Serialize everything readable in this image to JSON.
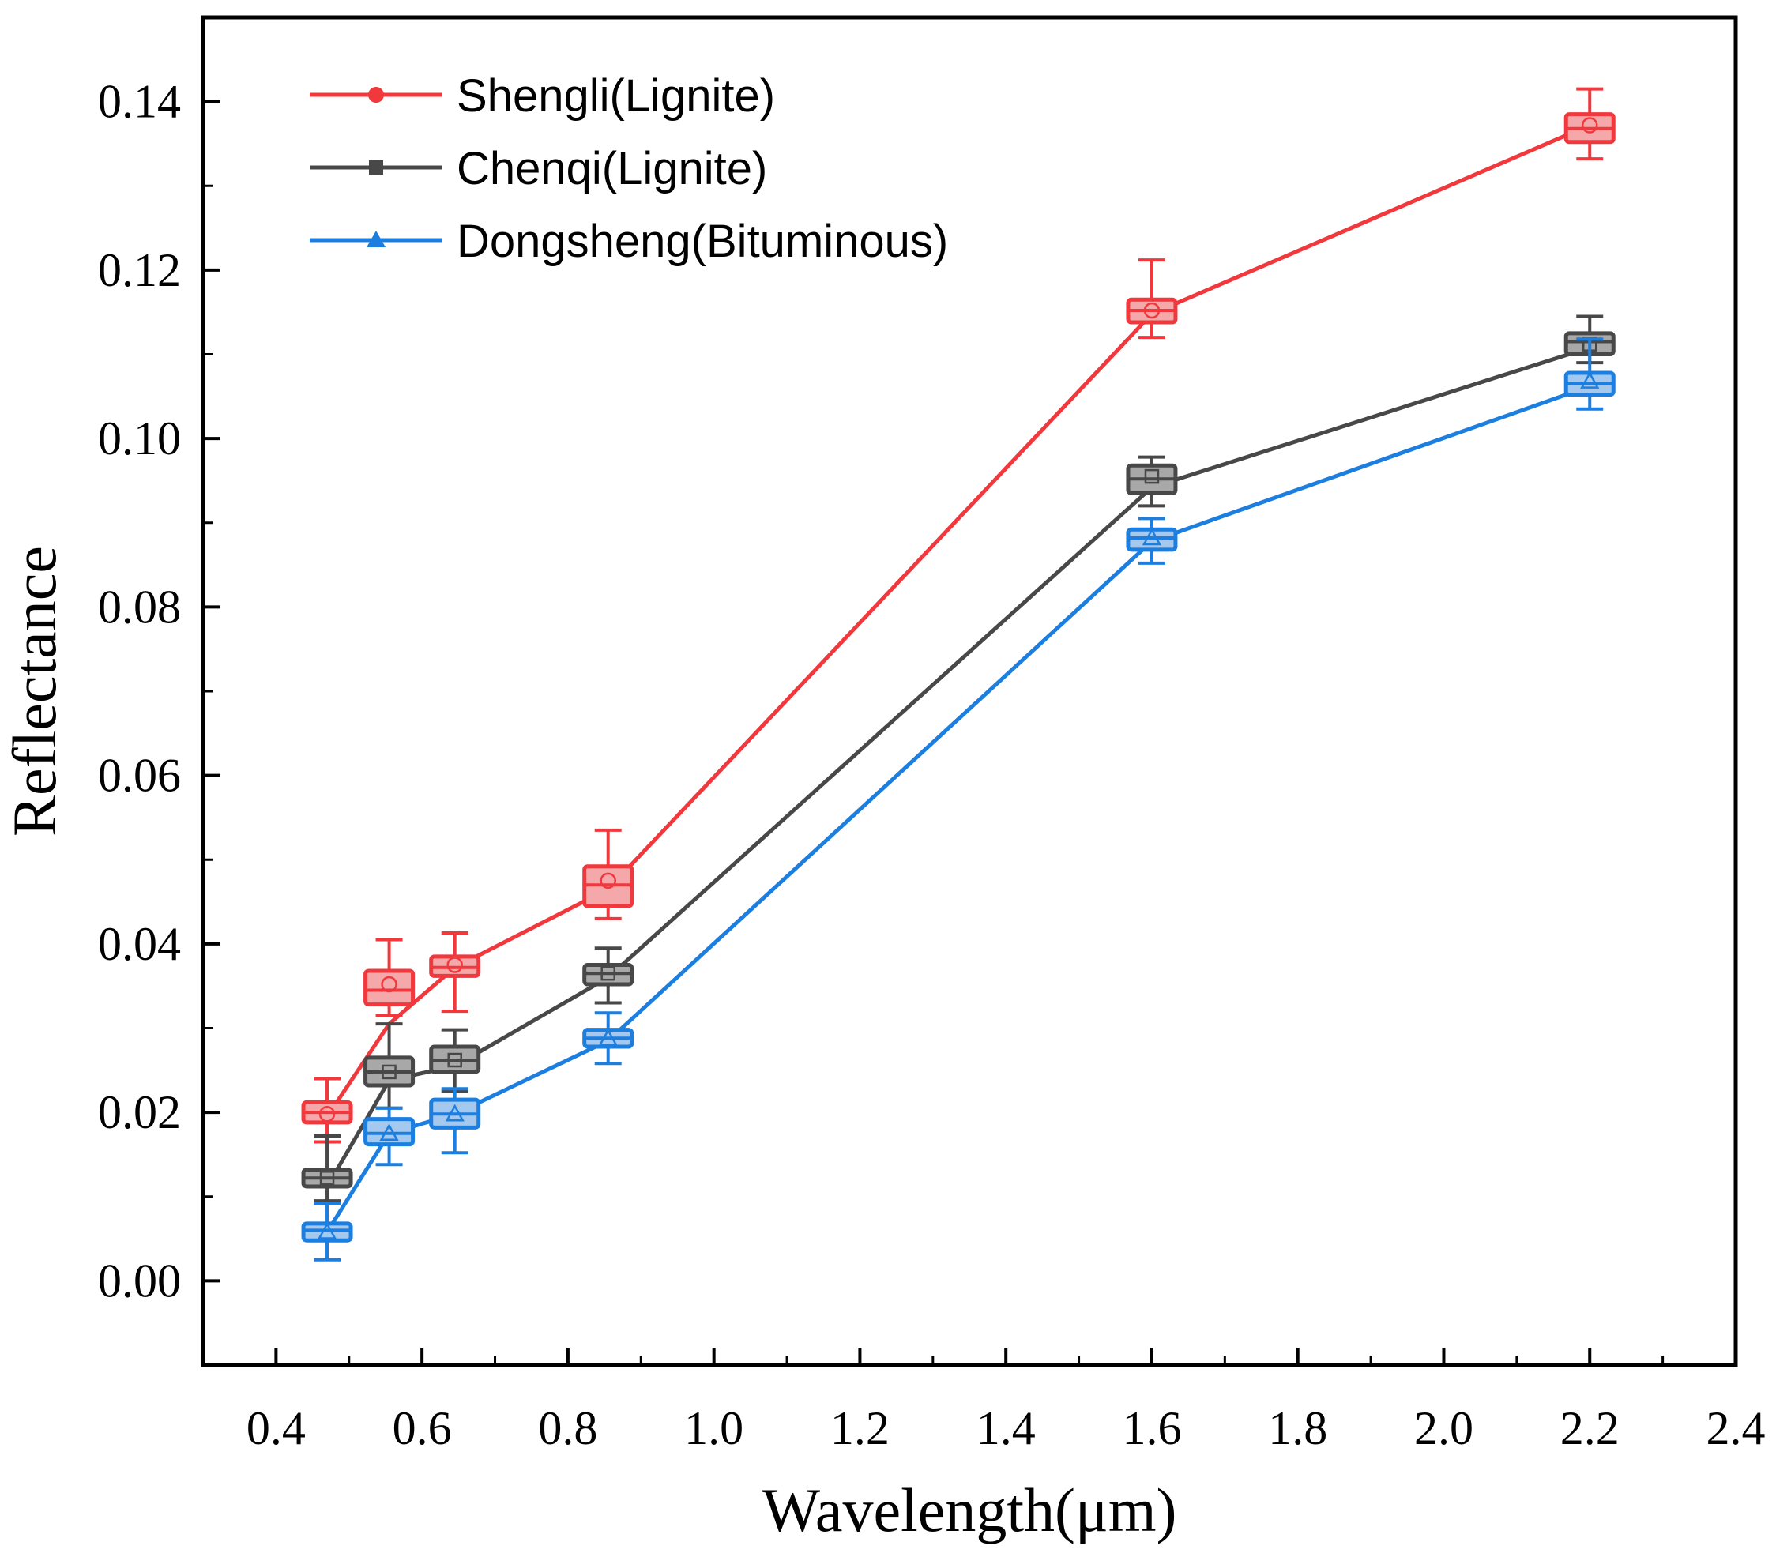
{
  "chart_data": {
    "type": "line",
    "xlabel": "Wavelength(μm)",
    "ylabel": "Reflectance",
    "xlim": [
      0.3,
      2.4
    ],
    "ylim": [
      -0.01,
      0.15
    ],
    "x_ticks": [
      0.4,
      0.6,
      0.8,
      1.0,
      1.2,
      1.4,
      1.6,
      1.8,
      2.0,
      2.2,
      2.4
    ],
    "x_tick_labels": [
      "0.4",
      "0.6",
      "0.8",
      "1.0",
      "1.2",
      "1.4",
      "1.6",
      "1.8",
      "2.0",
      "2.2",
      "2.4"
    ],
    "y_ticks": [
      0.0,
      0.02,
      0.04,
      0.06,
      0.08,
      0.1,
      0.12,
      0.14
    ],
    "y_tick_labels": [
      "0.00",
      "0.02",
      "0.04",
      "0.06",
      "0.08",
      "0.10",
      "0.12",
      "0.14"
    ],
    "grid": false,
    "legend_position": "top-left",
    "x": [
      0.47,
      0.555,
      0.645,
      0.855,
      1.6,
      2.2
    ],
    "series": [
      {
        "name": "Shengli(Lignite)",
        "color": "#f0383d",
        "fill": "#f4a8aa",
        "marker": "circle",
        "values": [
          0.0195,
          0.0305,
          0.0372,
          0.0465,
          0.1148,
          0.1372
        ],
        "box_q1": [
          0.0188,
          0.0328,
          0.0362,
          0.0445,
          0.1138,
          0.1352
        ],
        "box_q3": [
          0.0212,
          0.0368,
          0.0385,
          0.0492,
          0.1165,
          0.1385
        ],
        "median": [
          0.02,
          0.0345,
          0.0372,
          0.047,
          0.1152,
          0.1368
        ],
        "mean": [
          0.0198,
          0.0352,
          0.0375,
          0.0475,
          0.1152,
          0.1372
        ],
        "whisker_low": [
          0.0165,
          0.0315,
          0.032,
          0.043,
          0.112,
          0.1332
        ],
        "whisker_high": [
          0.024,
          0.0405,
          0.0413,
          0.0535,
          0.1212,
          0.1415
        ]
      },
      {
        "name": "Chenqi(Lignite)",
        "color": "#484848",
        "fill": "#a8a8a8",
        "marker": "square",
        "values": [
          0.0112,
          0.0238,
          0.0255,
          0.036,
          0.0942,
          0.1108
        ],
        "box_q1": [
          0.0112,
          0.0232,
          0.0248,
          0.0352,
          0.0935,
          0.11
        ],
        "box_q3": [
          0.0132,
          0.0265,
          0.0278,
          0.0375,
          0.0968,
          0.1125
        ],
        "median": [
          0.0122,
          0.0248,
          0.0262,
          0.0365,
          0.0952,
          0.1115
        ],
        "mean": [
          0.0122,
          0.0248,
          0.0262,
          0.0365,
          0.0955,
          0.1112
        ],
        "whisker_low": [
          0.0095,
          0.0205,
          0.0225,
          0.033,
          0.092,
          0.109
        ],
        "whisker_high": [
          0.0172,
          0.0305,
          0.0298,
          0.0395,
          0.0978,
          0.1145
        ]
      },
      {
        "name": "Dongsheng(Bituminous)",
        "color": "#1c7fe0",
        "fill": "#a4c8ee",
        "marker": "triangle",
        "values": [
          0.0058,
          0.0175,
          0.0198,
          0.0285,
          0.0878,
          0.1062
        ],
        "box_q1": [
          0.0048,
          0.0162,
          0.0182,
          0.0278,
          0.0868,
          0.1052
        ],
        "box_q3": [
          0.0068,
          0.0192,
          0.0215,
          0.0298,
          0.0892,
          0.1078
        ],
        "median": [
          0.006,
          0.0175,
          0.0198,
          0.0288,
          0.0882,
          0.1065
        ],
        "mean": [
          0.0058,
          0.0175,
          0.0198,
          0.0288,
          0.0882,
          0.1068
        ],
        "whisker_low": [
          0.0025,
          0.0138,
          0.0152,
          0.0258,
          0.0852,
          0.1035
        ],
        "whisker_high": [
          0.0092,
          0.0205,
          0.0228,
          0.0318,
          0.0905,
          0.1118
        ]
      }
    ]
  }
}
